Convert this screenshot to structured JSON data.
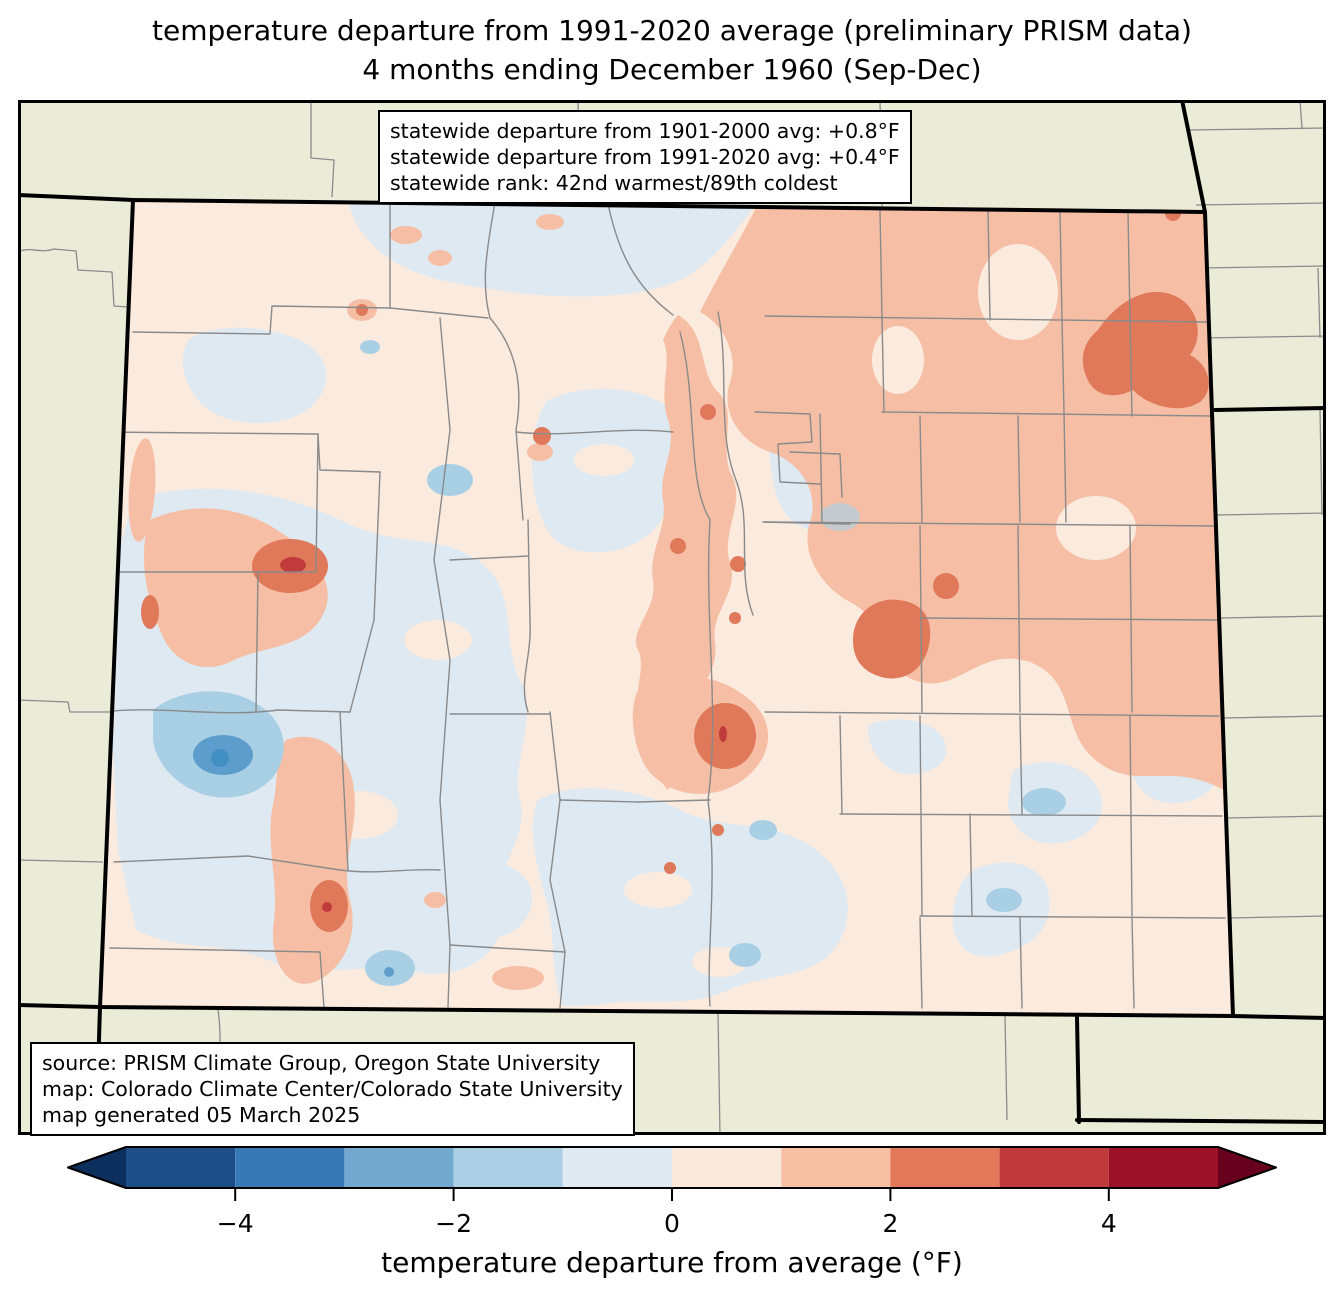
{
  "title": {
    "line1": "temperature departure from 1991-2020 average (preliminary PRISM data)",
    "line2": "4 months ending December 1960 (Sep-Dec)"
  },
  "stats_box": {
    "line1": "statewide departure from 1901-2000 avg: +0.8°F",
    "line2": "statewide departure from 1991-2020 avg: +0.4°F",
    "line3": "statewide rank: 42nd warmest/89th coldest"
  },
  "source_box": {
    "line1": "source: PRISM Climate Group, Oregon State University",
    "line2": "map: Colorado Climate Center/Colorado State University",
    "line3": "map generated 05 March 2025"
  },
  "colorbar": {
    "label": "temperature departure from average (°F)",
    "min": -5,
    "max": 5,
    "ticks": [
      {
        "value": -4,
        "label": "−4"
      },
      {
        "value": -2,
        "label": "−2"
      },
      {
        "value": 0,
        "label": "0"
      },
      {
        "value": 2,
        "label": "2"
      },
      {
        "value": 4,
        "label": "4"
      }
    ],
    "segments": [
      {
        "from": -5,
        "to": -4,
        "color": "#1d4e89"
      },
      {
        "from": -4,
        "to": -3,
        "color": "#3679b5"
      },
      {
        "from": -3,
        "to": -2,
        "color": "#74a9cf"
      },
      {
        "from": -2,
        "to": -1,
        "color": "#abcfe5"
      },
      {
        "from": -1,
        "to": 0,
        "color": "#dfeaf2"
      },
      {
        "from": 0,
        "to": 1,
        "color": "#fbe9de"
      },
      {
        "from": 1,
        "to": 2,
        "color": "#f7c0a4"
      },
      {
        "from": 2,
        "to": 3,
        "color": "#e2795b"
      },
      {
        "from": 3,
        "to": 4,
        "color": "#c0393c"
      },
      {
        "from": 4,
        "to": 5,
        "color": "#9c1127"
      }
    ],
    "extend": {
      "left": "#0d2f5d",
      "right": "#67001f"
    }
  },
  "map_colors": {
    "outside_land": "#ebecd8",
    "county_line": "#8a8a8a",
    "anom_0_1": "#fbeade",
    "anom_m1_0": "#dee9f2",
    "anom_m2_m1": "#a9cfe4",
    "anom_m3_m2": "#5d9dcb",
    "anom_m4_m3": "#4390c5",
    "anom_1_2": "#f6bfa5",
    "anom_2_3": "#e0795a",
    "anom_3_4": "#c13a3c"
  },
  "chart_data": {
    "type": "choropleth_map",
    "region": "Colorado",
    "variable": "temperature departure from average (°F)",
    "baseline": "1991-2020 average (preliminary PRISM data)",
    "period": "4 months ending December 1960 (Sep-Dec)",
    "statewide_departure_from_1901_2000_avg_F": "+0.8",
    "statewide_departure_from_1991_2020_avg_F": "+0.4",
    "statewide_rank": "42nd warmest/89th coldest",
    "colorbar_range_F": [
      -5,
      5
    ],
    "colorbar_tick_values": [
      -4,
      -2,
      0,
      2,
      4
    ]
  }
}
